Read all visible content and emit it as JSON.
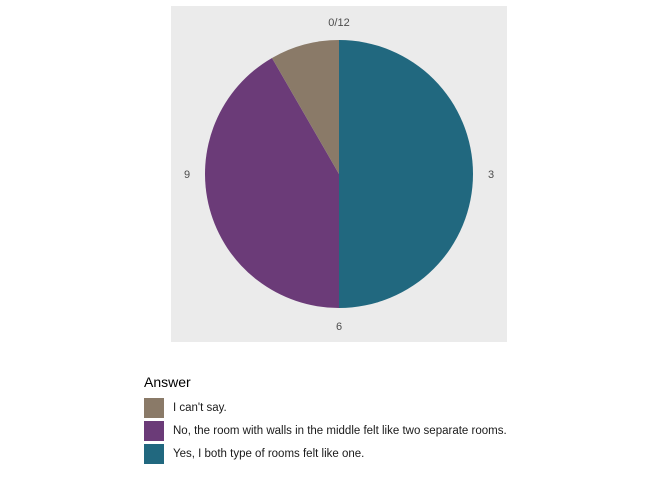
{
  "chart_data": {
    "type": "pie",
    "panel_background": "#ebebeb",
    "grid": false,
    "angle_ticks": [
      {
        "label": "0/12",
        "value": 0
      },
      {
        "label": "3",
        "value": 3
      },
      {
        "label": "6",
        "value": 6
      },
      {
        "label": "9",
        "value": 9
      }
    ],
    "slices": [
      {
        "label": "Yes, I both type of rooms felt like one.",
        "value": 6,
        "color": "#21687f"
      },
      {
        "label": "No, the room with walls in the middle felt like two separate rooms.",
        "value": 5,
        "color": "#6b3b78"
      },
      {
        "label": "I can't say.",
        "value": 1,
        "color": "#8a7a68"
      }
    ],
    "total": 12,
    "legend": {
      "title": "Answer",
      "placement": "bottom",
      "items": [
        {
          "label": "I can't say.",
          "color": "#8a7a68"
        },
        {
          "label": "No, the room with walls in the middle felt like two separate rooms.",
          "color": "#6b3b78"
        },
        {
          "label": "Yes, I both type of rooms felt like one.",
          "color": "#21687f"
        }
      ]
    }
  }
}
